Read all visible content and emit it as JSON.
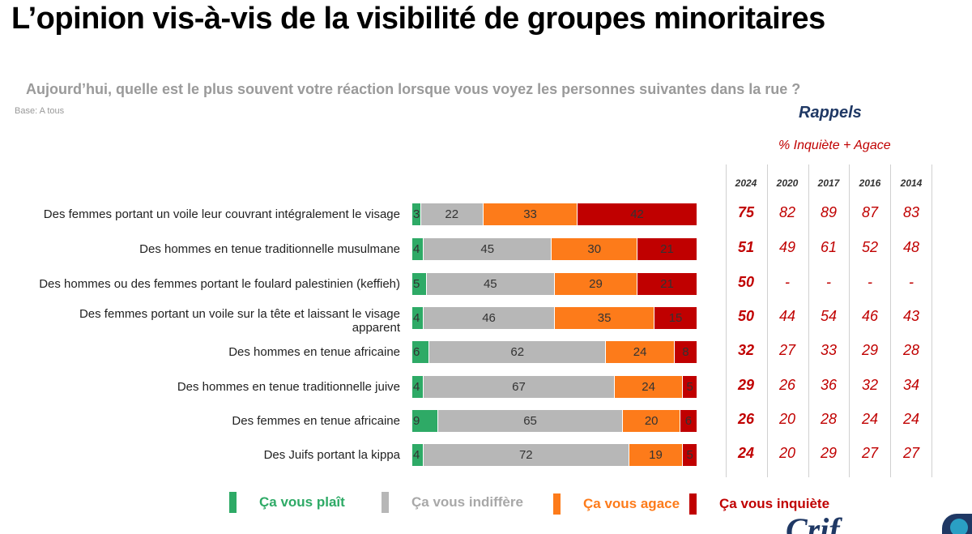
{
  "title": "L’opinion vis-à-vis de la visibilité de groupes minoritaires",
  "question": "Aujourd’hui, quelle est le plus souvent votre réaction lorsque vous voyez les personnes suivantes dans la rue ?",
  "base": "Base: A tous",
  "recall": {
    "heading": "Rappels",
    "subheading": "% Inquiète + Agace",
    "years": [
      "2024",
      "2020",
      "2017",
      "2016",
      "2014"
    ]
  },
  "colors": {
    "plait": "#2eaa66",
    "indiffere": "#b7b7b7",
    "agace": "#fd7b1a",
    "inquiete": "#c00000"
  },
  "legend": [
    {
      "label": "Ça vous plaît",
      "color": "#2eaa66"
    },
    {
      "label": "Ça vous indiffère",
      "color": "#b7b7b7"
    },
    {
      "label": "Ça vous agace",
      "color": "#fd7b1a"
    },
    {
      "label": "Ça vous inquiète",
      "color": "#c00000"
    }
  ],
  "logo": {
    "text": "Crif"
  },
  "chart_data": {
    "type": "bar",
    "orientation": "horizontal",
    "stacked": true,
    "percent": true,
    "categories": [
      "Des femmes portant un voile leur couvrant intégralement le visage",
      "Des hommes en tenue traditionnelle musulmane",
      "Des hommes ou des femmes portant le foulard palestinien (keffieh)",
      "Des femmes portant un voile sur la tête et laissant le visage apparent",
      "Des hommes en tenue africaine",
      "Des hommes en tenue traditionnelle juive",
      "Des femmes en tenue africaine",
      "Des Juifs portant la kippa"
    ],
    "series": [
      {
        "name": "Ça vous plaît",
        "values": [
          3,
          4,
          5,
          4,
          6,
          4,
          9,
          4
        ]
      },
      {
        "name": "Ça vous indiffère",
        "values": [
          22,
          45,
          45,
          46,
          62,
          67,
          65,
          72
        ]
      },
      {
        "name": "Ça vous agace",
        "values": [
          33,
          30,
          29,
          35,
          24,
          24,
          20,
          19
        ]
      },
      {
        "name": "Ça vous inquiète",
        "values": [
          42,
          21,
          21,
          15,
          8,
          5,
          6,
          5
        ]
      }
    ],
    "recall_table": {
      "columns": [
        "2024",
        "2020",
        "2017",
        "2016",
        "2014"
      ],
      "rows": [
        [
          "75",
          "82",
          "89",
          "87",
          "83"
        ],
        [
          "51",
          "49",
          "61",
          "52",
          "48"
        ],
        [
          "50",
          "-",
          "-",
          "-",
          "-"
        ],
        [
          "50",
          "44",
          "54",
          "46",
          "43"
        ],
        [
          "32",
          "27",
          "33",
          "29",
          "28"
        ],
        [
          "29",
          "26",
          "36",
          "32",
          "34"
        ],
        [
          "26",
          "20",
          "28",
          "24",
          "24"
        ],
        [
          "24",
          "20",
          "29",
          "27",
          "27"
        ]
      ]
    },
    "legend_position": "bottom"
  }
}
